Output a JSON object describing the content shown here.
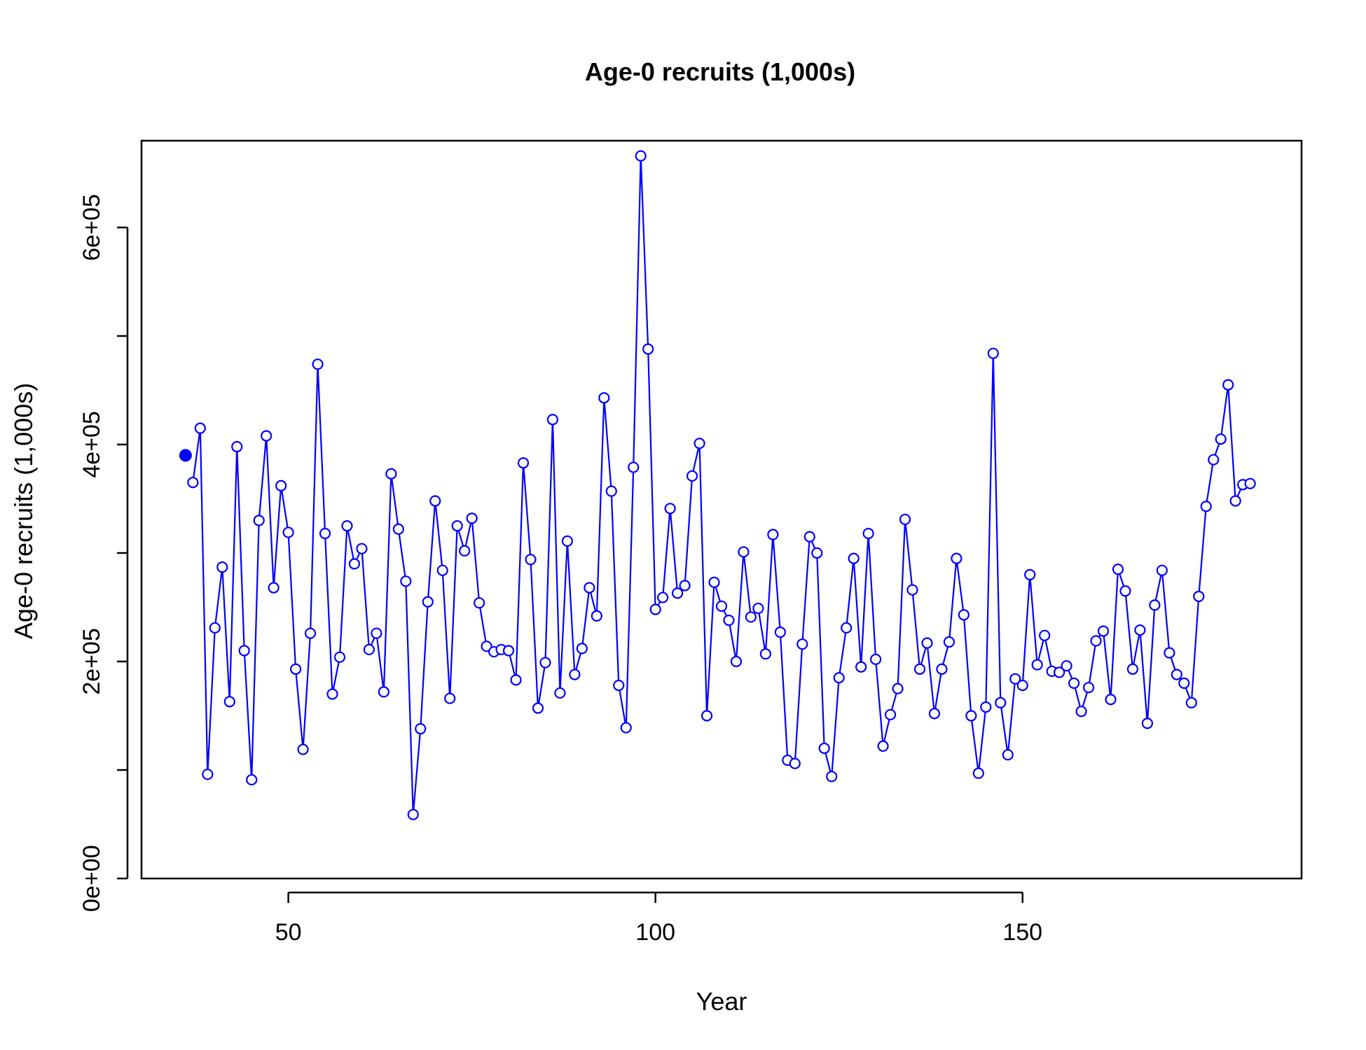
{
  "chart_data": {
    "type": "line",
    "title": "Age-0 recruits (1,000s)",
    "xlabel": "Year",
    "ylabel": "Age-0 recruits (1,000s)",
    "xlim": [
      30,
      188
    ],
    "ylim": [
      0,
      680000
    ],
    "x_ticks": [
      50,
      100,
      150
    ],
    "x_tick_labels": [
      "50",
      "100",
      "150"
    ],
    "y_ticks": [
      0,
      100000,
      200000,
      300000,
      400000,
      500000,
      600000
    ],
    "y_tick_labels": [
      "0e+00",
      "",
      "2e+05",
      "",
      "4e+05",
      "",
      "6e+05"
    ],
    "line_color": "#0000ff",
    "initial_point": {
      "x": 36,
      "y": 390000
    },
    "series": [
      {
        "x": [
          37,
          38,
          39,
          40,
          41,
          42,
          43,
          44,
          45,
          46,
          47,
          48,
          49,
          50,
          51,
          52,
          53,
          54,
          55,
          56,
          57,
          58,
          59,
          60,
          61,
          62,
          63,
          64,
          65,
          66,
          67,
          68,
          69,
          70,
          71,
          72,
          73,
          74,
          75,
          76,
          77,
          78,
          79,
          80,
          81,
          82,
          83,
          84,
          85,
          86,
          87,
          88,
          89,
          90,
          91,
          92,
          93,
          94,
          95,
          96,
          97,
          98,
          99,
          100,
          101,
          102,
          103,
          104,
          105,
          106,
          107,
          108,
          109,
          110,
          111,
          112,
          113,
          114,
          115,
          116,
          117,
          118,
          119,
          120,
          121,
          122,
          123,
          124,
          125,
          126,
          127,
          128,
          129,
          130,
          131,
          132,
          133,
          134,
          135,
          136,
          137,
          138,
          139,
          140,
          141,
          142,
          143,
          144,
          145,
          146,
          147,
          148,
          149,
          150,
          151,
          152,
          153,
          154,
          155,
          156,
          157,
          158,
          159,
          160,
          161,
          162,
          163,
          164,
          165,
          166,
          167,
          168,
          169,
          170,
          171,
          172,
          173,
          174,
          175,
          176,
          177,
          178,
          179,
          180,
          181
        ],
        "values": [
          365000,
          415000,
          96000,
          231000,
          287000,
          163000,
          398000,
          210000,
          91000,
          330000,
          408000,
          268000,
          362000,
          319000,
          193000,
          119000,
          226000,
          474000,
          318000,
          170000,
          204000,
          325000,
          290000,
          304000,
          211000,
          226000,
          172000,
          373000,
          322000,
          274000,
          59000,
          138000,
          255000,
          348000,
          284000,
          166000,
          325000,
          302000,
          332000,
          254000,
          214000,
          209000,
          211000,
          210000,
          183000,
          383000,
          294000,
          157000,
          199000,
          423000,
          171000,
          311000,
          188000,
          212000,
          268000,
          242000,
          443000,
          357000,
          178000,
          139000,
          379000,
          666000,
          488000,
          248000,
          259000,
          341000,
          263000,
          270000,
          371000,
          401000,
          150000,
          273000,
          251000,
          238000,
          200000,
          301000,
          241000,
          249000,
          207000,
          317000,
          227000,
          109000,
          106000,
          216000,
          315000,
          300000,
          120000,
          94000,
          185000,
          231000,
          295000,
          195000,
          318000,
          202000,
          122000,
          151000,
          175000,
          331000,
          266000,
          193000,
          217000,
          152000,
          193000,
          218000,
          295000,
          243000,
          150000,
          97000,
          158000,
          484000,
          162000,
          114000,
          184000,
          178000,
          280000,
          197000,
          224000,
          191000,
          190000,
          196000,
          180000,
          154000,
          176000,
          219000,
          228000,
          165000,
          285000,
          265000,
          193000,
          229000,
          143000,
          252000,
          284000,
          208000,
          188000,
          180000,
          162000,
          260000,
          343000,
          386000,
          405000,
          455000,
          348000,
          363000,
          364000
        ]
      }
    ]
  }
}
